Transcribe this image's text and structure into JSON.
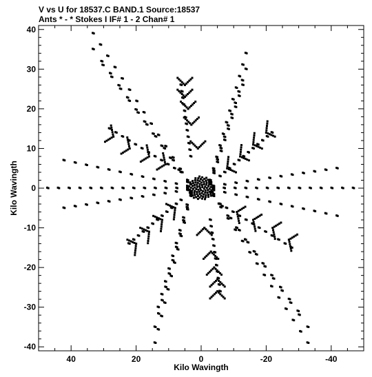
{
  "chart_data": {
    "type": "scatter",
    "title_line1": "V vs U for 18537.C BAND.1   Source:18537",
    "title_line2": "Ants * - *    Stokes I  IF# 1 - 2  Chan# 1",
    "xlabel": "Kilo Wavingth",
    "ylabel": "Kilo Wavingth",
    "xlim": [
      50,
      -50
    ],
    "ylim": [
      -41,
      41
    ],
    "x_ticks": [
      40,
      20,
      0,
      -20,
      -40
    ],
    "y_ticks": [
      40,
      30,
      20,
      10,
      0,
      -10,
      -20,
      -30,
      -40
    ],
    "grid": false,
    "legend": "none",
    "point_color": "#000000",
    "arms": [
      {
        "name": "upper-left-outer",
        "start": [
          4,
          2
        ],
        "end": [
          33,
          39
        ],
        "count": 14
      },
      {
        "name": "upper-left-mid",
        "start": [
          4,
          1.5
        ],
        "end": [
          33,
          35
        ],
        "count": 12
      },
      {
        "name": "upper-left-inner",
        "start": [
          3,
          1
        ],
        "end": [
          30,
          31
        ],
        "count": 11
      },
      {
        "name": "upper-right-outer",
        "start": [
          -3,
          2
        ],
        "end": [
          -14,
          34
        ],
        "count": 12
      },
      {
        "name": "upper-right-mid",
        "start": [
          -3,
          1.5
        ],
        "end": [
          -14,
          30
        ],
        "count": 11
      },
      {
        "name": "upper-right-inner",
        "start": [
          -3,
          1
        ],
        "end": [
          -13,
          26
        ],
        "count": 10
      },
      {
        "name": "left-outer",
        "start": [
          4,
          0
        ],
        "end": [
          47,
          0
        ],
        "count": 14
      },
      {
        "name": "left-mid",
        "start": [
          4,
          -0.5
        ],
        "end": [
          42,
          -5
        ],
        "count": 12
      },
      {
        "name": "left-upper",
        "start": [
          4,
          0.5
        ],
        "end": [
          42,
          7
        ],
        "count": 12
      },
      {
        "name": "right-outer",
        "start": [
          -4,
          0
        ],
        "end": [
          -47,
          0
        ],
        "count": 14
      },
      {
        "name": "right-mid",
        "start": [
          -4,
          0.5
        ],
        "end": [
          -42,
          5
        ],
        "count": 12
      },
      {
        "name": "right-lower",
        "start": [
          -4,
          -0.5
        ],
        "end": [
          -42,
          -7
        ],
        "count": 12
      },
      {
        "name": "lower-right-outer",
        "start": [
          -4,
          -2
        ],
        "end": [
          -33,
          -39
        ],
        "count": 14
      },
      {
        "name": "lower-right-mid",
        "start": [
          -4,
          -1.5
        ],
        "end": [
          -33,
          -35
        ],
        "count": 12
      },
      {
        "name": "lower-right-inner",
        "start": [
          -3,
          -1
        ],
        "end": [
          -30,
          -31
        ],
        "count": 11
      },
      {
        "name": "lower-left-outer",
        "start": [
          3,
          -2
        ],
        "end": [
          14,
          -39
        ],
        "count": 12
      },
      {
        "name": "lower-left-mid",
        "start": [
          3,
          -1.5
        ],
        "end": [
          14,
          -35
        ],
        "count": 11
      },
      {
        "name": "lower-left-inner",
        "start": [
          3,
          -1
        ],
        "end": [
          13,
          -30
        ],
        "count": 10
      },
      {
        "name": "north-chevron-axis",
        "start": [
          3,
          8
        ],
        "end": [
          6,
          26
        ],
        "count": 12
      },
      {
        "name": "south-chevron-axis",
        "start": [
          -3,
          -8
        ],
        "end": [
          -6,
          -26
        ],
        "count": 12
      },
      {
        "name": "nw-chevron-axis",
        "start": [
          6,
          4
        ],
        "end": [
          28,
          15
        ],
        "count": 12
      },
      {
        "name": "se-chevron-axis",
        "start": [
          -6,
          -4
        ],
        "end": [
          -28,
          -15
        ],
        "count": 12
      },
      {
        "name": "ne-chevron-axis",
        "start": [
          -6,
          3
        ],
        "end": [
          -22,
          14
        ],
        "count": 12
      },
      {
        "name": "sw-chevron-axis",
        "start": [
          6,
          -3
        ],
        "end": [
          22,
          -14
        ],
        "count": 12
      }
    ],
    "chevrons": [
      {
        "center": [
          5,
          26
        ],
        "dir": [
          0,
          1
        ]
      },
      {
        "center": [
          5,
          23
        ],
        "dir": [
          0,
          1
        ]
      },
      {
        "center": [
          4,
          20
        ],
        "dir": [
          0,
          1
        ]
      },
      {
        "center": [
          3,
          16
        ],
        "dir": [
          0,
          1
        ]
      },
      {
        "center": [
          1,
          10
        ],
        "dir": [
          0,
          1
        ]
      },
      {
        "center": [
          -5,
          -26
        ],
        "dir": [
          0,
          -1
        ]
      },
      {
        "center": [
          -5,
          -23
        ],
        "dir": [
          0,
          -1
        ]
      },
      {
        "center": [
          -4,
          -20
        ],
        "dir": [
          0,
          -1
        ]
      },
      {
        "center": [
          -3,
          -16
        ],
        "dir": [
          0,
          -1
        ]
      },
      {
        "center": [
          -1,
          -10
        ],
        "dir": [
          0,
          -1
        ]
      },
      {
        "center": [
          27,
          13
        ],
        "dir": [
          1,
          0.45
        ]
      },
      {
        "center": [
          22,
          10
        ],
        "dir": [
          1,
          0.45
        ]
      },
      {
        "center": [
          16,
          8
        ],
        "dir": [
          1,
          0.45
        ]
      },
      {
        "center": [
          11,
          6
        ],
        "dir": [
          1,
          0.45
        ]
      },
      {
        "center": [
          -27,
          -13
        ],
        "dir": [
          -1,
          -0.45
        ]
      },
      {
        "center": [
          -22,
          -10
        ],
        "dir": [
          -1,
          -0.45
        ]
      },
      {
        "center": [
          -16,
          -8
        ],
        "dir": [
          -1,
          -0.45
        ]
      },
      {
        "center": [
          -11,
          -6
        ],
        "dir": [
          -1,
          -0.45
        ]
      },
      {
        "center": [
          -20,
          14
        ],
        "dir": [
          -1,
          0.6
        ]
      },
      {
        "center": [
          -16,
          11
        ],
        "dir": [
          -1,
          0.6
        ]
      },
      {
        "center": [
          -12,
          8
        ],
        "dir": [
          -1,
          0.6
        ]
      },
      {
        "center": [
          -8,
          5
        ],
        "dir": [
          -1,
          0.6
        ]
      },
      {
        "center": [
          20,
          -14
        ],
        "dir": [
          1,
          -0.6
        ]
      },
      {
        "center": [
          16,
          -11
        ],
        "dir": [
          1,
          -0.6
        ]
      },
      {
        "center": [
          12,
          -8
        ],
        "dir": [
          1,
          -0.6
        ]
      },
      {
        "center": [
          8,
          -5
        ],
        "dir": [
          1,
          -0.6
        ]
      }
    ],
    "core": {
      "center": [
        0,
        0
      ],
      "radius": [
        4,
        3
      ],
      "count": 90
    }
  }
}
